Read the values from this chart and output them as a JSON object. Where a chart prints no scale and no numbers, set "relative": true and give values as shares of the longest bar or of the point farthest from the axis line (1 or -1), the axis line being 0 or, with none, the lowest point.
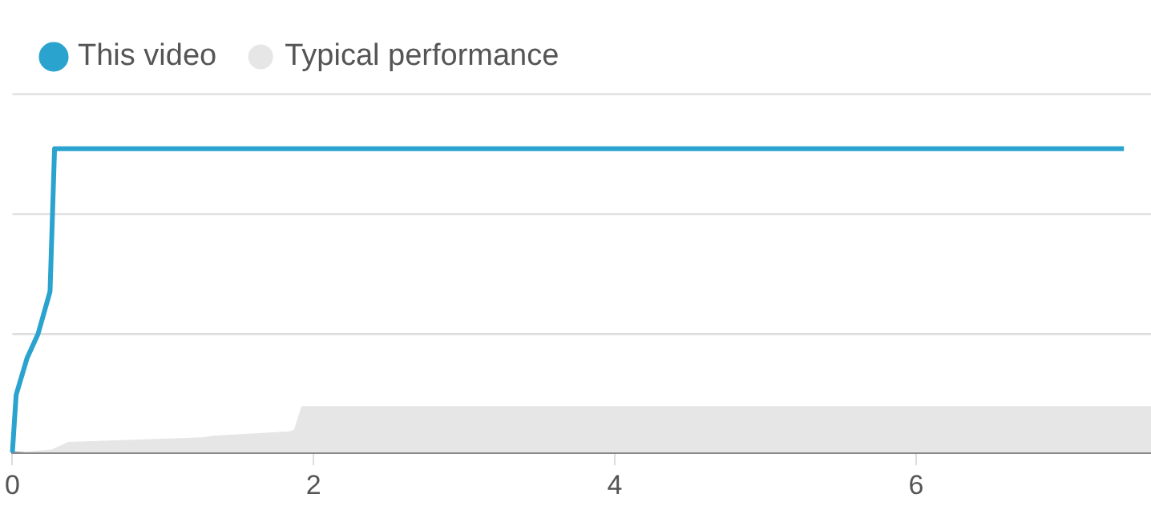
{
  "chart_data": {
    "type": "line",
    "relative": true,
    "xlim": [
      0,
      7.56
    ],
    "xticks": [
      0,
      2,
      4,
      6
    ],
    "ref_lines": [
      {
        "axis": "y",
        "value": 0.39,
        "color": "#dddddd"
      },
      {
        "axis": "y",
        "value": 0.785,
        "color": "#dddddd"
      },
      {
        "axis": "y",
        "value": 1.18,
        "color": "#dddddd"
      }
    ],
    "legend": "top left",
    "marker": "none",
    "tick_labels": "x",
    "series": [
      {
        "name": "This video",
        "type": "line",
        "color": "#2aa3cf",
        "x": [
          0,
          0.025,
          0.097,
          0.17,
          0.25,
          0.28,
          7.38
        ],
        "values": [
          0,
          0.19,
          0.31,
          0.39,
          0.53,
          1,
          1
        ]
      },
      {
        "name": "Typical performance",
        "type": "area",
        "color": "#e6e6e6",
        "x": [
          0,
          0.26,
          0.37,
          1.26,
          1.33,
          1.84,
          1.87,
          1.92,
          7.56
        ],
        "values": [
          0,
          0.01,
          0.035,
          0.05,
          0.055,
          0.07,
          0.075,
          0.153,
          0.153
        ]
      }
    ]
  }
}
